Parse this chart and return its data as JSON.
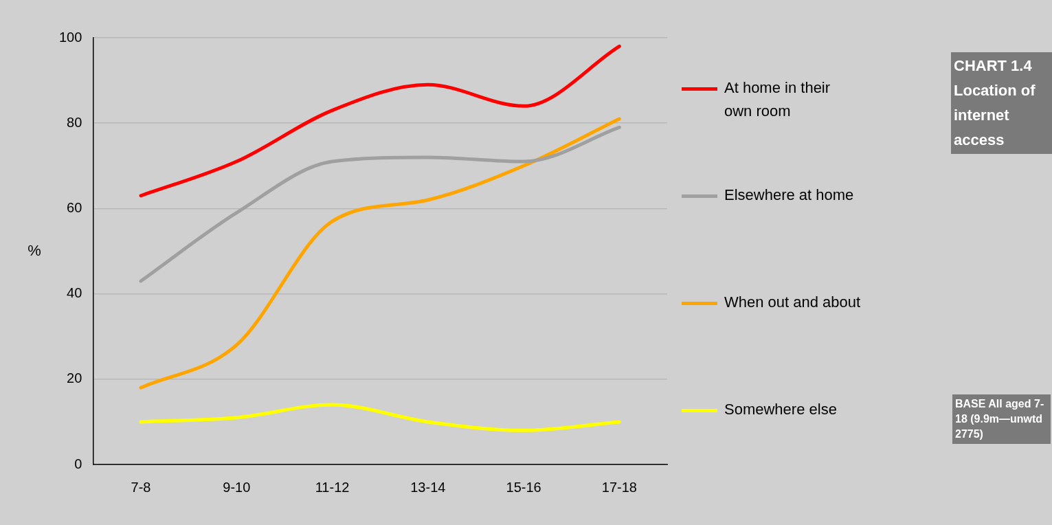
{
  "chart_data": {
    "type": "line",
    "title": "CHART 1.4 Location of internet access",
    "ylabel": "%",
    "categories": [
      "7-8",
      "9-10",
      "11-12",
      "13-14",
      "15-16",
      "17-18"
    ],
    "series": [
      {
        "name": "At home in their own room",
        "color": "#ff0000",
        "values": [
          63,
          71,
          83,
          89,
          84,
          98
        ]
      },
      {
        "name": "Elsewhere at home",
        "color": "#a0a0a0",
        "values": [
          43,
          59,
          71,
          72,
          71,
          79
        ]
      },
      {
        "name": "When out and about",
        "color": "#ffa500",
        "values": [
          18,
          28,
          57,
          62,
          70,
          81
        ]
      },
      {
        "name": "Somewhere else",
        "color": "#ffff00",
        "values": [
          10,
          11,
          14,
          10,
          8,
          10
        ]
      }
    ],
    "ylim": [
      0,
      100
    ],
    "yticks": [
      0,
      20,
      40,
      60,
      80,
      100
    ],
    "grid": "y",
    "legend": "right",
    "marker": "none",
    "line_style": "solid",
    "annotations": [
      "BASE All aged 7-18 (9.9m—unwtd 2775)"
    ]
  }
}
